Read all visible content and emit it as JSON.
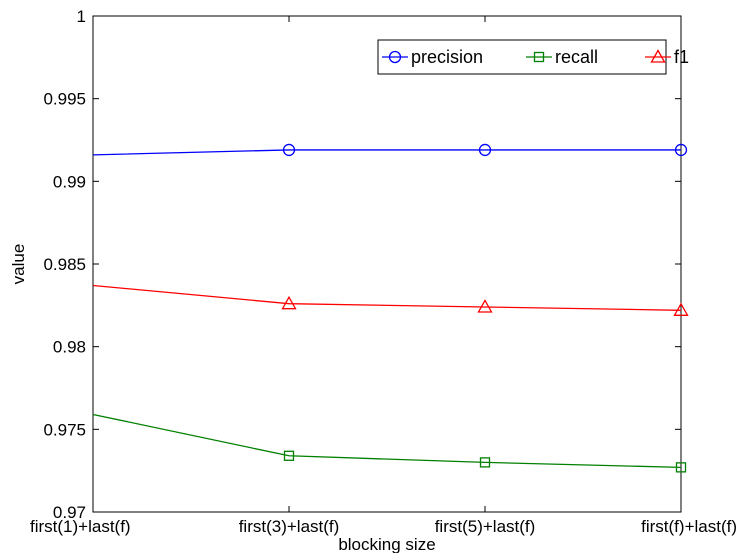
{
  "chart_data": {
    "type": "line",
    "xlabel": "blocking size",
    "ylabel": "value",
    "categories": [
      "first(1)+last(f)",
      "first(3)+last(f)",
      "first(5)+last(f)",
      "first(f)+last(f)"
    ],
    "ylim": [
      0.97,
      1.0
    ],
    "yticks": [
      "0.97",
      "0.975",
      "0.98",
      "0.985",
      "0.99",
      "0.995",
      "1"
    ],
    "grid": false,
    "legend_position": "top-right",
    "series": [
      {
        "name": "precision",
        "color": "#0000ff",
        "marker": "circle",
        "values": [
          0.9916,
          0.9919,
          0.9919,
          0.9919
        ]
      },
      {
        "name": "recall",
        "color": "#008000",
        "marker": "square",
        "values": [
          0.9759,
          0.9734,
          0.973,
          0.9727
        ]
      },
      {
        "name": "f1",
        "color": "#ff0000",
        "marker": "triangle",
        "values": [
          0.9837,
          0.9826,
          0.9824,
          0.9822
        ]
      }
    ]
  }
}
